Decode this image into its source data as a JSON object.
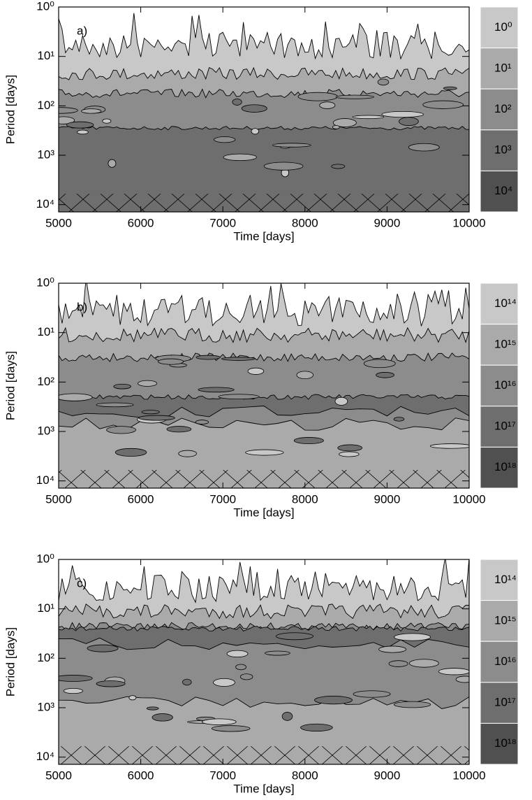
{
  "chart_data": [
    {
      "type": "contour",
      "panel_label": "a)",
      "xlabel": "Time [days]",
      "ylabel": "Period [days]",
      "xlim": [
        5000,
        10000
      ],
      "xticks": [
        5000,
        6000,
        7000,
        8000,
        9000,
        10000
      ],
      "ylim": [
        1,
        14000
      ],
      "log_y": true,
      "y_inverted": true,
      "yticks": [
        {
          "value": 1,
          "label": "10⁰"
        },
        {
          "value": 10,
          "label": "10¹"
        },
        {
          "value": 100,
          "label": "10²"
        },
        {
          "value": 1000,
          "label": "10³"
        },
        {
          "value": 10000,
          "label": "10⁴"
        }
      ],
      "levels": [
        {
          "value": 1,
          "label": "10⁰"
        },
        {
          "value": 10,
          "label": "10¹"
        },
        {
          "value": 100,
          "label": "10²"
        },
        {
          "value": 1000,
          "label": "10³"
        },
        {
          "value": 10000,
          "label": "10⁴"
        }
      ],
      "colors": [
        "#c8c8c8",
        "#aaaaaa",
        "#8c8c8c",
        "#6e6e6e",
        "#505050"
      ]
    },
    {
      "type": "contour",
      "panel_label": "b)",
      "xlabel": "Time [days]",
      "ylabel": "Period [days]",
      "xlim": [
        5000,
        10000
      ],
      "xticks": [
        5000,
        6000,
        7000,
        8000,
        9000,
        10000
      ],
      "ylim": [
        1,
        14000
      ],
      "log_y": true,
      "y_inverted": true,
      "yticks": [
        {
          "value": 1,
          "label": "10⁰"
        },
        {
          "value": 10,
          "label": "10¹"
        },
        {
          "value": 100,
          "label": "10²"
        },
        {
          "value": 1000,
          "label": "10³"
        },
        {
          "value": 10000,
          "label": "10⁴"
        }
      ],
      "levels": [
        {
          "value": 100000000000000.0,
          "label": "10¹⁴"
        },
        {
          "value": 1000000000000000.0,
          "label": "10¹⁵"
        },
        {
          "value": 1e+16,
          "label": "10¹⁶"
        },
        {
          "value": 1e+17,
          "label": "10¹⁷"
        },
        {
          "value": 1e+18,
          "label": "10¹⁸"
        }
      ],
      "colors": [
        "#c8c8c8",
        "#aaaaaa",
        "#8c8c8c",
        "#6e6e6e",
        "#505050"
      ]
    },
    {
      "type": "contour",
      "panel_label": "c)",
      "xlabel": "Time [days]",
      "ylabel": "Period [days]",
      "xlim": [
        5000,
        10000
      ],
      "xticks": [
        5000,
        6000,
        7000,
        8000,
        9000,
        10000
      ],
      "ylim": [
        1,
        14000
      ],
      "log_y": true,
      "y_inverted": true,
      "yticks": [
        {
          "value": 1,
          "label": "10⁰"
        },
        {
          "value": 10,
          "label": "10¹"
        },
        {
          "value": 100,
          "label": "10²"
        },
        {
          "value": 1000,
          "label": "10³"
        },
        {
          "value": 10000,
          "label": "10⁴"
        }
      ],
      "levels": [
        {
          "value": 100000000000000.0,
          "label": "10¹⁴"
        },
        {
          "value": 1000000000000000.0,
          "label": "10¹⁵"
        },
        {
          "value": 1e+16,
          "label": "10¹⁶"
        },
        {
          "value": 1e+17,
          "label": "10¹⁷"
        },
        {
          "value": 1e+18,
          "label": "10¹⁸"
        }
      ],
      "colors": [
        "#c8c8c8",
        "#aaaaaa",
        "#8c8c8c",
        "#6e6e6e",
        "#505050"
      ]
    }
  ]
}
